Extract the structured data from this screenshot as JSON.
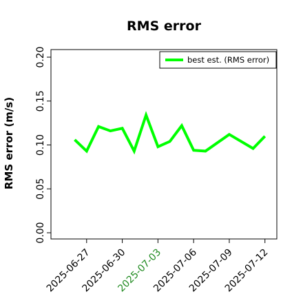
{
  "chart_data": {
    "type": "line",
    "title": "RMS error",
    "xlabel": "",
    "ylabel": "RMS error (m/s)",
    "x_start": "2025-06-26",
    "x_end": "2025-07-12",
    "xlim": [
      "2025-06-24",
      "2025-07-13"
    ],
    "ylim": [
      0.0,
      0.2
    ],
    "y_ticks": [
      0.0,
      0.05,
      0.1,
      0.15,
      0.2
    ],
    "y_tick_labels": [
      "0.00",
      "0.05",
      "0.10",
      "0.15",
      "0.20"
    ],
    "x_ticks": [
      "2025-06-27",
      "2025-06-30",
      "2025-07-03",
      "2025-07-06",
      "2025-07-09",
      "2025-07-12"
    ],
    "highlight_tick": "2025-07-03",
    "highlight_color": "#228b22",
    "grid": false,
    "legend_position": "top-right",
    "series": [
      {
        "name": "best est. (RMS error)",
        "color": "#00ff00",
        "x": [
          "2025-06-26",
          "2025-06-27",
          "2025-06-28",
          "2025-06-29",
          "2025-06-30",
          "2025-07-01",
          "2025-07-02",
          "2025-07-03",
          "2025-07-04",
          "2025-07-05",
          "2025-07-06",
          "2025-07-07",
          "2025-07-09",
          "2025-07-11",
          "2025-07-12"
        ],
        "values": [
          0.106,
          0.093,
          0.121,
          0.116,
          0.119,
          0.093,
          0.134,
          0.098,
          0.104,
          0.122,
          0.094,
          0.093,
          0.112,
          0.096,
          0.11
        ]
      }
    ]
  }
}
